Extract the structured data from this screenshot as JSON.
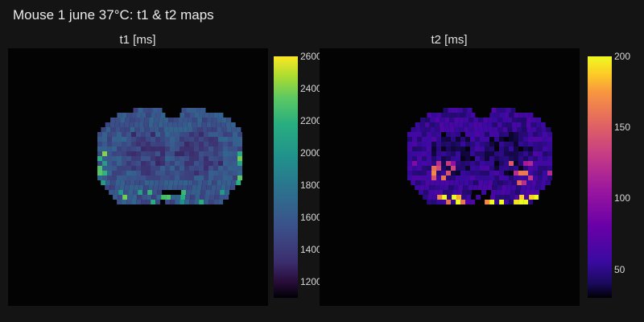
{
  "title": "Mouse 1 june 37°C: t1 & t2 maps",
  "colors": {
    "background": "#141414",
    "map_background": "#030303"
  },
  "chart_data": [
    {
      "type": "heatmap",
      "title": "t1 [ms]",
      "colormap": "viridis",
      "colorbar": {
        "range": [
          1100,
          2600
        ],
        "ticks": [
          1200,
          1400,
          1600,
          1800,
          2000,
          2200,
          2400,
          2600
        ]
      },
      "content": "coronal mouse brain section map, mostly 1400–1800 ms, bright yellow-green rim voxels up to ~2400 ms"
    },
    {
      "type": "heatmap",
      "title": "t2 [ms]",
      "colormap": "plasma",
      "colorbar": {
        "range": [
          30,
          200
        ],
        "ticks": [
          50,
          100,
          150,
          200
        ]
      },
      "content": "coronal mouse brain section map, mostly 40–70 ms, bright orange-yellow voxels up to ~200 ms along ventral edge"
    }
  ]
}
